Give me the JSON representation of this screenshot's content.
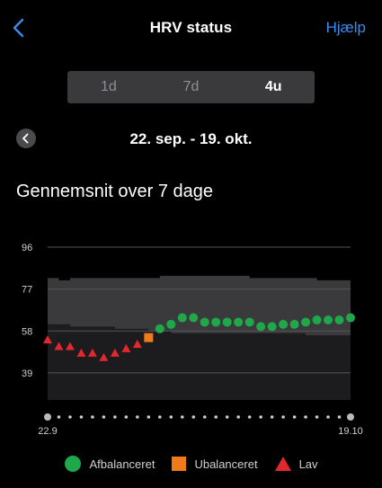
{
  "header": {
    "title": "HRV status",
    "help_label": "Hjælp",
    "back_icon": "chevron-left-icon"
  },
  "segments": {
    "items": [
      "1d",
      "7d",
      "4u"
    ],
    "selected": "4u"
  },
  "date_range": {
    "label": "22. sep. - 19. okt.",
    "prev_icon": "chevron-left-icon"
  },
  "section_title": "Gennemsnit over 7 dage",
  "colors": {
    "accent": "#3a8cf0",
    "balanced": "#1fa84a",
    "unbalanced": "#f07a1a",
    "low": "#e0282e",
    "baseline_band": "#3a3a3d"
  },
  "chart_data": {
    "type": "scatter",
    "title": "",
    "xlabel": "",
    "ylabel": "",
    "y_ticks": [
      96,
      77,
      58,
      39
    ],
    "ylim": [
      30,
      96
    ],
    "x_tick_labels": [
      "22.9",
      "19.10"
    ],
    "grid": true,
    "legend_position": "bottom",
    "baseline_band": {
      "upper": [
        82,
        81,
        82,
        82,
        82,
        82,
        82,
        82,
        82,
        82,
        83,
        83,
        83,
        83,
        83,
        83,
        83,
        83,
        82,
        82,
        82,
        82,
        82,
        82,
        81,
        81,
        81,
        81
      ],
      "lower": [
        61,
        61,
        60,
        60,
        60,
        60,
        59,
        59,
        59,
        58,
        58,
        57,
        57,
        57,
        57,
        57,
        57,
        57,
        57,
        57,
        57,
        57,
        57,
        56,
        56,
        56,
        56,
        56
      ]
    },
    "series": [
      {
        "name": "Afbalanceret",
        "marker": "circle",
        "points": [
          {
            "x": 11,
            "y": 59
          },
          {
            "x": 12,
            "y": 61
          },
          {
            "x": 13,
            "y": 64
          },
          {
            "x": 14,
            "y": 64
          },
          {
            "x": 15,
            "y": 62
          },
          {
            "x": 16,
            "y": 62
          },
          {
            "x": 17,
            "y": 62
          },
          {
            "x": 18,
            "y": 62
          },
          {
            "x": 19,
            "y": 62
          },
          {
            "x": 20,
            "y": 60
          },
          {
            "x": 21,
            "y": 60
          },
          {
            "x": 22,
            "y": 61
          },
          {
            "x": 23,
            "y": 61
          },
          {
            "x": 24,
            "y": 62
          },
          {
            "x": 25,
            "y": 63
          },
          {
            "x": 26,
            "y": 63
          },
          {
            "x": 27,
            "y": 63
          },
          {
            "x": 28,
            "y": 64
          }
        ]
      },
      {
        "name": "Ubalanceret",
        "marker": "square",
        "points": [
          {
            "x": 10,
            "y": 55
          }
        ]
      },
      {
        "name": "Lav",
        "marker": "triangle",
        "points": [
          {
            "x": 1,
            "y": 54
          },
          {
            "x": 2,
            "y": 51
          },
          {
            "x": 3,
            "y": 51
          },
          {
            "x": 4,
            "y": 48
          },
          {
            "x": 5,
            "y": 48
          },
          {
            "x": 6,
            "y": 46
          },
          {
            "x": 7,
            "y": 48
          },
          {
            "x": 8,
            "y": 50
          },
          {
            "x": 9,
            "y": 52
          }
        ]
      }
    ]
  },
  "legend": {
    "items": [
      {
        "label": "Afbalanceret",
        "icon": "green-circle-icon"
      },
      {
        "label": "Ubalanceret",
        "icon": "orange-square-icon"
      },
      {
        "label": "Lav",
        "icon": "red-triangle-icon"
      }
    ]
  }
}
